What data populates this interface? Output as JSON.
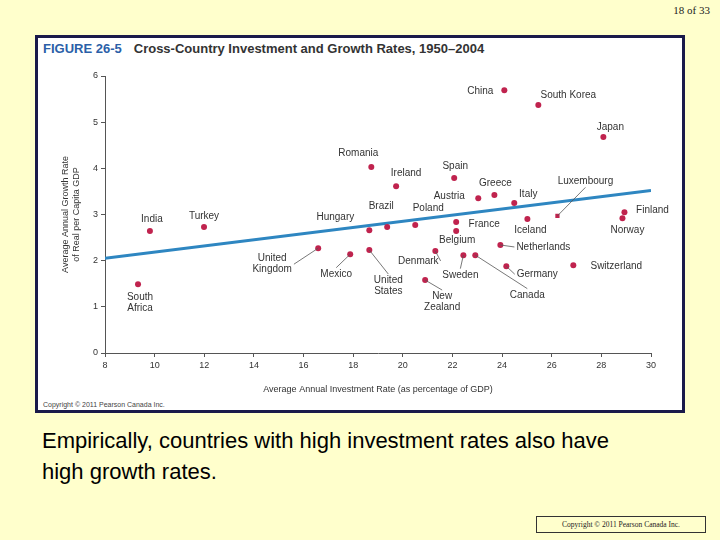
{
  "page": {
    "number": "18 of 33",
    "caption": "Empirically, countries with high investment rates also have high growth rates.",
    "footer": "Copyright © 2011 Pearson Canada Inc."
  },
  "chart_data": {
    "type": "scatter",
    "figure_label": "FIGURE 26-5",
    "title": "Cross-Country Investment and Growth Rates, 1950–2004",
    "credit": "Copyright © 2011 Pearson Canada Inc.",
    "x_label": "Average Annual Investment Rate (as percentage of GDP)",
    "y_label": [
      "Average Annual Growth Rate",
      "of Real per Capita GDP"
    ],
    "xlim": [
      8,
      30
    ],
    "xticks": [
      8,
      10,
      12,
      14,
      16,
      18,
      20,
      22,
      24,
      26,
      28,
      30
    ],
    "ylim": [
      0,
      6
    ],
    "yticks": [
      0,
      1,
      2,
      3,
      4,
      5,
      6
    ],
    "grid": false,
    "series": [
      {
        "type": "scatter",
        "marker": "circle",
        "color": "#c0234e",
        "x": [
          24.09,
          25.46,
          28.08,
          18.73,
          19.73,
          22.07,
          23.69,
          23.04,
          24.49,
          28.93,
          28.85,
          19.37,
          20.5,
          18.65,
          22.15,
          22.15,
          25.02,
          23.93,
          9.81,
          11.99,
          16.59,
          17.88,
          18.65,
          21.31,
          22.44,
          20.9,
          24.17,
          22.92,
          26.87,
          9.33
        ],
        "values": [
          5.69,
          5.37,
          4.68,
          4.03,
          3.61,
          3.79,
          3.42,
          3.35,
          3.25,
          3.05,
          2.92,
          2.73,
          2.77,
          2.66,
          2.84,
          2.64,
          2.9,
          2.34,
          2.64,
          2.73,
          2.27,
          2.14,
          2.23,
          2.21,
          2.12,
          1.58,
          1.88,
          2.12,
          1.9,
          1.49
        ],
        "point_labels": [
          "China",
          "South Korea",
          "Japan",
          "Romania",
          "Ireland",
          "Spain",
          "Greece",
          "Austria",
          "Italy",
          "Finland",
          "Norway",
          "Brazil",
          "Poland",
          "Hungary",
          "France",
          "Belgium",
          "Iceland",
          "Netherlands",
          "India",
          "Turkey",
          "United Kingdom",
          "Mexico",
          "United States",
          "Denmark",
          "Sweden",
          "New Zealand",
          "Germany",
          "Canada",
          "Switzerland",
          "South Africa"
        ]
      },
      {
        "type": "scatter",
        "marker": "square",
        "color": "#c0234e",
        "x": [
          26.23
        ],
        "values": [
          2.97
        ],
        "point_labels": [
          "Luxembourg"
        ]
      },
      {
        "type": "line",
        "line_style": "solid",
        "color": "#2e86c1",
        "x": [
          8,
          30
        ],
        "values": [
          2.05,
          3.52
        ]
      }
    ]
  }
}
